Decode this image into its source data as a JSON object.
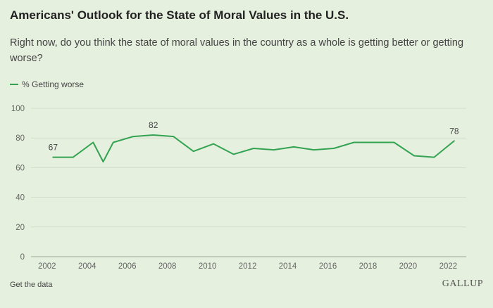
{
  "header": {
    "title": "Americans' Outlook for the State of Moral Values in the U.S.",
    "subtitle": "Right now, do you think the state of moral values in the country as a whole is getting better or getting worse?"
  },
  "legend": {
    "label": "% Getting worse"
  },
  "footer": {
    "link_label": "Get the data",
    "brand": "GALLUP"
  },
  "colors": {
    "background": "#e6f0df",
    "line": "#33a352",
    "grid": "#d2dec9",
    "axis_text": "#666666"
  },
  "chart_data": {
    "type": "line",
    "title": "Americans' Outlook for the State of Moral Values in the U.S.",
    "subtitle": "Right now, do you think the state of moral values in the country as a whole is getting better or getting worse?",
    "xlabel": "",
    "ylabel": "",
    "xlim": [
      2001.2,
      2022.9
    ],
    "ylim": [
      0,
      100
    ],
    "x_ticks": [
      2002,
      2004,
      2006,
      2008,
      2010,
      2012,
      2014,
      2016,
      2018,
      2020,
      2022
    ],
    "y_ticks": [
      0,
      20,
      40,
      60,
      80,
      100
    ],
    "grid": true,
    "legend_position": "top-left",
    "series": [
      {
        "name": "% Getting worse",
        "x": [
          2002.3,
          2003.3,
          2004.3,
          2004.8,
          2005.3,
          2006.3,
          2007.3,
          2008.3,
          2009.3,
          2010.3,
          2011.3,
          2012.3,
          2013.3,
          2014.3,
          2015.3,
          2016.3,
          2017.3,
          2018.3,
          2019.3,
          2020.3,
          2021.3,
          2022.3
        ],
        "values": [
          67,
          67,
          77,
          64,
          77,
          81,
          82,
          81,
          71,
          76,
          69,
          73,
          72,
          74,
          72,
          73,
          77,
          77,
          77,
          68,
          67,
          78
        ]
      }
    ],
    "annotations": [
      {
        "x": 2002.3,
        "value": 67,
        "text": "67"
      },
      {
        "x": 2007.3,
        "value": 82,
        "text": "82"
      },
      {
        "x": 2022.3,
        "value": 78,
        "text": "78"
      }
    ]
  }
}
